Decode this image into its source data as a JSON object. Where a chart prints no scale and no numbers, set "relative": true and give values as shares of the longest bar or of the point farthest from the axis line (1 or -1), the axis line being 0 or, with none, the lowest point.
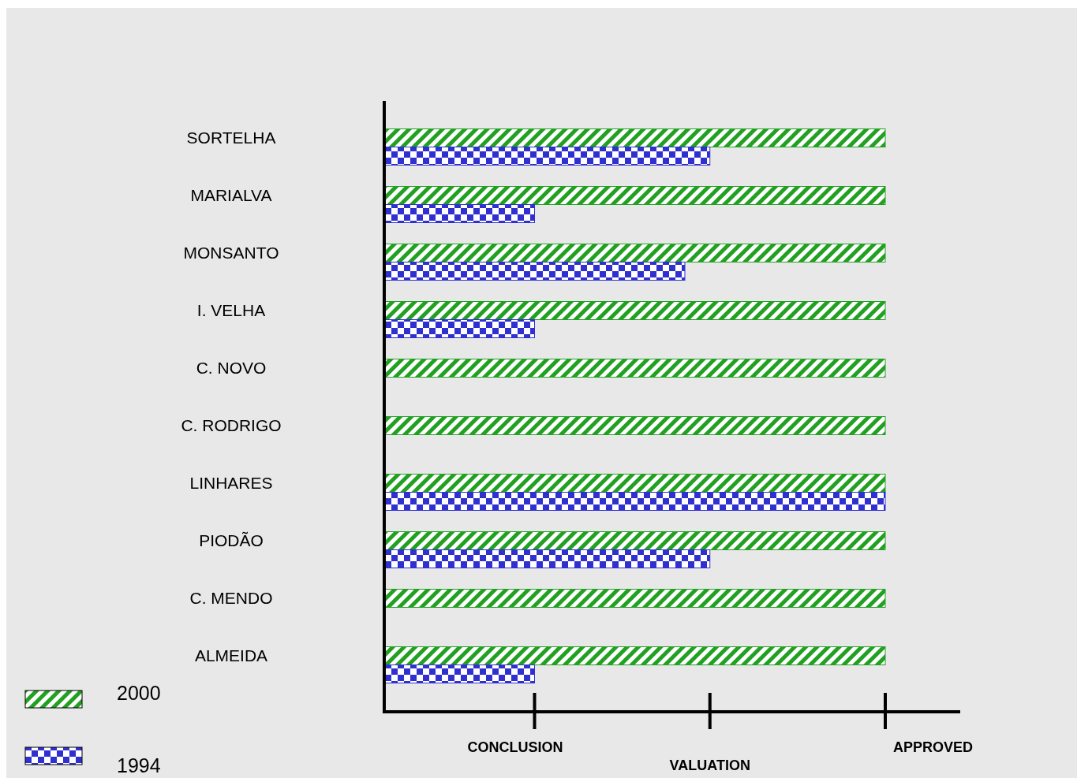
{
  "chart_data": {
    "type": "bar",
    "orientation": "horizontal",
    "relative": true,
    "categories": [
      "SORTELHA",
      "MARIALVA",
      "MONSANTO",
      "I. VELHA",
      "C. NOVO",
      "C. RODRIGO",
      "LINHARES",
      "PIODÃO",
      "C. MENDO",
      "ALMEIDA"
    ],
    "series": [
      {
        "name": "2000",
        "color": "#22a022",
        "values": [
          1,
          1,
          1,
          1,
          1,
          1,
          1,
          1,
          1,
          1
        ]
      },
      {
        "name": "1994",
        "color": "#3030d0",
        "values": [
          0.65,
          0.3,
          0.6,
          0.3,
          null,
          null,
          1,
          0.65,
          null,
          0.3
        ]
      }
    ],
    "annotations": [
      "CONCLUSION",
      "VALUATION",
      "APPROVED"
    ],
    "grid": false,
    "legend": "bottom left"
  }
}
